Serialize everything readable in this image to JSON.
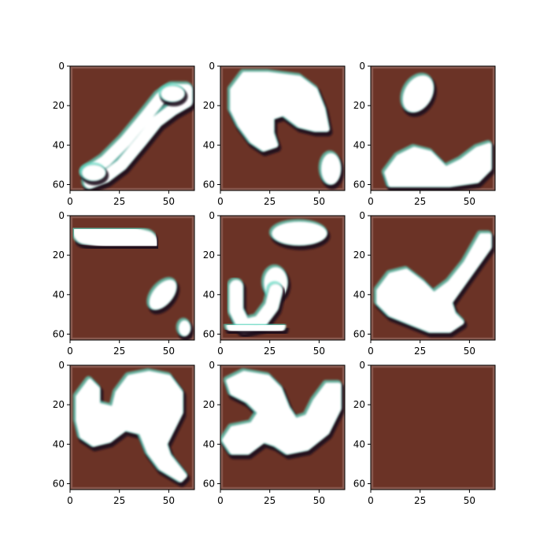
{
  "colors": {
    "panel_background": "#6b3326",
    "panel_edge": "#9a6f66",
    "blob_fill": "#ffffff",
    "blob_rim_dark": "#1a0f1f",
    "blob_rim_teal": "#5fd6c0",
    "axis": "#000000",
    "page": "#ffffff"
  },
  "chart_data": {
    "type": "heatmap",
    "layout": "3x3 image grid",
    "xlim": [
      0,
      63
    ],
    "ylim": [
      63,
      0
    ],
    "x_tick_labels": [
      "0",
      "25",
      "50"
    ],
    "y_tick_labels": [
      "0",
      "20",
      "40",
      "60"
    ],
    "x_ticks": [
      0,
      25,
      50
    ],
    "y_ticks": [
      0,
      20,
      40,
      60
    ],
    "panels": [
      {
        "blobs": [
          {
            "kind": "path",
            "points": [
              [
                9,
                54
              ],
              [
                18,
                48
              ],
              [
                28,
                38
              ],
              [
                38,
                26
              ],
              [
                46,
                16
              ],
              [
                52,
                12
              ],
              [
                59,
                12
              ],
              [
                59,
                18
              ],
              [
                52,
                22
              ],
              [
                44,
                28
              ],
              [
                36,
                38
              ],
              [
                26,
                50
              ],
              [
                18,
                56
              ],
              [
                10,
                59
              ]
            ],
            "width": 6
          },
          {
            "kind": "ellipse",
            "cx": 52,
            "cy": 14,
            "rx": 6,
            "ry": 4
          },
          {
            "kind": "ellipse",
            "cx": 12,
            "cy": 54,
            "rx": 6,
            "ry": 4
          }
        ]
      },
      {
        "blobs": [
          {
            "kind": "polygon",
            "points": [
              [
                6,
                12
              ],
              [
                12,
                4
              ],
              [
                24,
                4
              ],
              [
                40,
                6
              ],
              [
                48,
                12
              ],
              [
                52,
                22
              ],
              [
                54,
                32
              ],
              [
                48,
                32
              ],
              [
                40,
                30
              ],
              [
                32,
                24
              ],
              [
                26,
                26
              ],
              [
                26,
                34
              ],
              [
                28,
                40
              ],
              [
                22,
                42
              ],
              [
                16,
                38
              ],
              [
                10,
                30
              ],
              [
                6,
                22
              ]
            ]
          },
          {
            "kind": "ellipse",
            "cx": 56,
            "cy": 52,
            "rx": 5,
            "ry": 8
          }
        ]
      },
      {
        "blobs": [
          {
            "kind": "ellipse",
            "cx": 24,
            "cy": 14,
            "rx": 7,
            "ry": 10,
            "rotate": 30
          },
          {
            "kind": "polygon",
            "points": [
              [
                8,
                54
              ],
              [
                14,
                46
              ],
              [
                22,
                42
              ],
              [
                30,
                44
              ],
              [
                38,
                52
              ],
              [
                46,
                48
              ],
              [
                54,
                42
              ],
              [
                60,
                40
              ],
              [
                60,
                52
              ],
              [
                54,
                58
              ],
              [
                40,
                60
              ],
              [
                24,
                60
              ],
              [
                10,
                60
              ]
            ]
          }
        ]
      },
      {
        "blobs": [
          {
            "kind": "path",
            "points": [
              [
                8,
                8
              ],
              [
                20,
                10
              ],
              [
                30,
                12
              ],
              [
                38,
                14
              ]
            ],
            "width": 13
          },
          {
            "kind": "ellipse",
            "cx": 47,
            "cy": 40,
            "rx": 5,
            "ry": 9,
            "rotate": 40
          },
          {
            "kind": "ellipse",
            "cx": 58,
            "cy": 57,
            "rx": 3,
            "ry": 4
          }
        ]
      },
      {
        "blobs": [
          {
            "kind": "ellipse",
            "cx": 40,
            "cy": 9,
            "rx": 14,
            "ry": 6
          },
          {
            "kind": "ellipse",
            "cx": 28,
            "cy": 34,
            "rx": 6,
            "ry": 8
          },
          {
            "kind": "path",
            "points": [
              [
                8,
                36
              ],
              [
                8,
                48
              ],
              [
                12,
                56
              ],
              [
                20,
                54
              ],
              [
                26,
                46
              ],
              [
                28,
                38
              ]
            ],
            "width": 7
          },
          {
            "kind": "path",
            "points": [
              [
                6,
                56
              ],
              [
                18,
                58
              ],
              [
                30,
                56
              ]
            ],
            "width": 6
          }
        ]
      },
      {
        "blobs": [
          {
            "kind": "polygon",
            "points": [
              [
                4,
                38
              ],
              [
                10,
                30
              ],
              [
                18,
                28
              ],
              [
                26,
                34
              ],
              [
                32,
                40
              ],
              [
                40,
                34
              ],
              [
                48,
                24
              ],
              [
                56,
                10
              ],
              [
                60,
                10
              ],
              [
                60,
                16
              ],
              [
                50,
                30
              ],
              [
                40,
                44
              ],
              [
                42,
                50
              ],
              [
                46,
                54
              ],
              [
                40,
                58
              ],
              [
                30,
                58
              ],
              [
                20,
                54
              ],
              [
                10,
                50
              ],
              [
                4,
                44
              ]
            ]
          }
        ]
      },
      {
        "blobs": [
          {
            "kind": "polygon",
            "points": [
              [
                4,
                16
              ],
              [
                10,
                8
              ],
              [
                14,
                12
              ],
              [
                14,
                20
              ],
              [
                22,
                22
              ],
              [
                24,
                14
              ],
              [
                30,
                6
              ],
              [
                40,
                4
              ],
              [
                50,
                6
              ],
              [
                56,
                14
              ],
              [
                56,
                24
              ],
              [
                52,
                32
              ],
              [
                48,
                40
              ],
              [
                50,
                46
              ],
              [
                58,
                56
              ],
              [
                56,
                58
              ],
              [
                46,
                52
              ],
              [
                40,
                44
              ],
              [
                36,
                34
              ],
              [
                28,
                32
              ],
              [
                20,
                38
              ],
              [
                12,
                40
              ],
              [
                6,
                36
              ],
              [
                4,
                28
              ]
            ]
          }
        ]
      },
      {
        "blobs": [
          {
            "kind": "polygon",
            "points": [
              [
                4,
                8
              ],
              [
                12,
                4
              ],
              [
                24,
                6
              ],
              [
                30,
                12
              ],
              [
                34,
                22
              ],
              [
                38,
                28
              ],
              [
                44,
                26
              ],
              [
                48,
                18
              ],
              [
                54,
                10
              ],
              [
                60,
                10
              ],
              [
                60,
                22
              ],
              [
                54,
                34
              ],
              [
                44,
                42
              ],
              [
                34,
                44
              ],
              [
                28,
                40
              ],
              [
                22,
                38
              ],
              [
                14,
                44
              ],
              [
                6,
                44
              ],
              [
                2,
                38
              ],
              [
                6,
                32
              ],
              [
                16,
                30
              ],
              [
                20,
                24
              ],
              [
                14,
                18
              ],
              [
                6,
                14
              ]
            ]
          }
        ]
      },
      {
        "blobs": []
      }
    ]
  }
}
